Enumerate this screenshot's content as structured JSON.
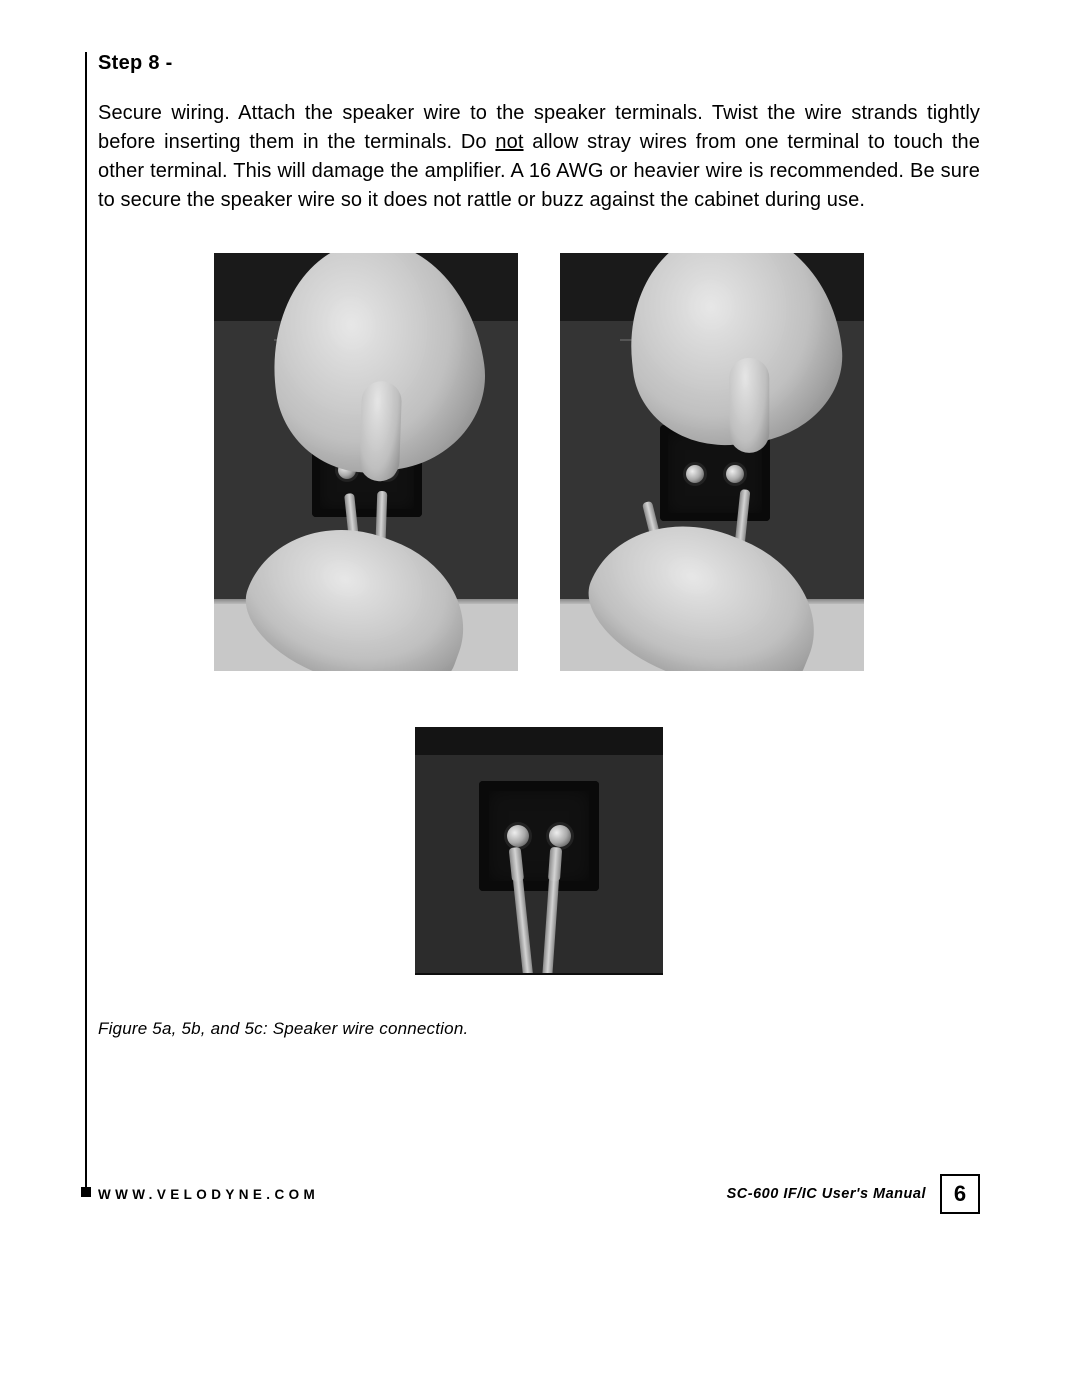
{
  "step_title": "Step 8 -",
  "body": {
    "t1": "Secure wiring.  Attach the speaker wire to the speaker terminals.  Twist the wire strands tightly before inserting them in the terminals. Do ",
    "not": "not",
    "t2": " allow stray wires from one terminal to touch the other terminal. This will damage the amplifier. A 16 AWG or heavier wire is recommended. Be sure to secure the speaker wire so it does not rattle or buzz against the cabinet during use."
  },
  "caption": "Figure 5a, 5b, and 5c:  Speaker wire connection.",
  "footer": {
    "url": "WWW.VELODYNE.COM",
    "manual": "SC-600 IF/IC User's Manual",
    "page": "6"
  },
  "colors": {
    "text": "#000000",
    "bg": "#ffffff",
    "photo_dark": "#2b2b2b",
    "photo_floor": "#c8c8c8",
    "hand_light": "#e2e2e2",
    "hand_mid": "#bdbdbd",
    "hand_dark": "#8e8e8e",
    "wire": "#c0c0c0",
    "terminal_cup": "#111111"
  },
  "figures": {
    "a": {
      "label": "5a",
      "desc": "Hand pressing speaker wire into left binding post"
    },
    "b": {
      "label": "5b",
      "desc": "Hand pressing speaker wire into right binding post"
    },
    "c": {
      "label": "5c",
      "desc": "Both wires secured in terminal cup"
    }
  }
}
